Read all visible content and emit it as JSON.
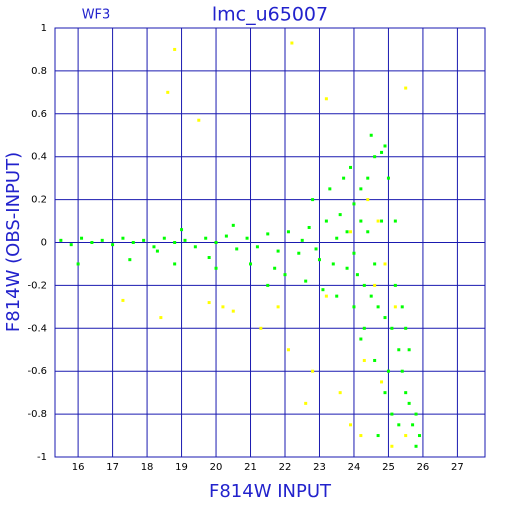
{
  "chart_data": {
    "type": "scatter",
    "title": "lmc_u65007",
    "subtitle": "WF3",
    "x_label": "F814W INPUT",
    "y_label": "F814W (OBS-INPUT)",
    "xlim": [
      15.33,
      27.8
    ],
    "ylim": [
      -1,
      1
    ],
    "xticks": [
      16,
      17,
      18,
      19,
      20,
      21,
      22,
      23,
      24,
      25,
      26,
      27
    ],
    "yticks": [
      -1,
      -0.8,
      -0.6,
      -0.4,
      -0.2,
      0,
      0.2,
      0.4,
      0.6,
      0.8,
      1
    ],
    "grid": true,
    "series": [
      {
        "name": "green",
        "color": "#00ff00",
        "x": [
          15.5,
          15.8,
          16.1,
          16.4,
          16.7,
          17,
          17.3,
          17.6,
          17.9,
          18.2,
          18.5,
          18.8,
          19.1,
          19.4,
          19.7,
          20,
          20.3,
          20.6,
          20.9,
          21.2,
          21.5,
          21.8,
          22.1,
          22.4,
          22.7,
          23,
          23.2,
          23.4,
          23.6,
          23.8,
          24,
          24.1,
          24.2,
          24.3,
          24.4,
          24.5,
          24.6,
          24.7,
          24.8,
          24.9,
          25,
          25.1,
          25.2,
          25.3,
          25.4,
          25.5,
          25.6,
          25.7,
          25.8,
          25.9,
          25.6,
          25.4,
          25.2,
          24.8,
          24.6,
          24.4,
          24.2,
          24,
          23.8,
          23.5,
          22.9,
          22.5,
          16,
          17.5,
          18.3,
          19,
          19.8,
          20.5,
          21,
          21.7,
          22,
          22.6,
          23.1,
          23.5,
          24,
          24.3,
          24.6,
          24.9,
          25.1,
          25.3,
          24.7,
          22.8,
          23.3,
          23.9,
          24.5,
          24.9,
          20,
          18.8,
          21.5,
          23.7,
          24.2,
          25,
          25.5,
          25.8
        ],
        "values": [
          0.01,
          -0.01,
          0.02,
          0,
          0.01,
          -0.01,
          0.02,
          0,
          0.01,
          -0.02,
          0.02,
          0,
          0.01,
          -0.02,
          0.02,
          0,
          0.03,
          -0.03,
          0.02,
          -0.02,
          0.04,
          -0.04,
          0.05,
          -0.05,
          0.07,
          -0.08,
          0.1,
          -0.1,
          0.13,
          -0.12,
          0.18,
          -0.15,
          0.25,
          -0.2,
          0.3,
          -0.25,
          0.4,
          -0.3,
          0.42,
          -0.35,
          0.3,
          -0.4,
          0.1,
          -0.5,
          -0.6,
          -0.7,
          -0.75,
          -0.85,
          -0.95,
          -0.9,
          -0.5,
          -0.3,
          -0.2,
          0.1,
          -0.1,
          0.05,
          0.1,
          -0.05,
          0.05,
          0.02,
          -0.03,
          0.01,
          -0.1,
          -0.08,
          -0.04,
          0.06,
          -0.07,
          0.08,
          -0.1,
          -0.12,
          -0.15,
          -0.18,
          -0.22,
          -0.25,
          -0.3,
          -0.4,
          -0.55,
          -0.7,
          -0.8,
          -0.85,
          -0.9,
          0.2,
          0.25,
          0.35,
          0.5,
          0.45,
          -0.12,
          -0.1,
          -0.2,
          0.3,
          -0.45,
          -0.6,
          -0.4,
          -0.8
        ]
      },
      {
        "name": "yellow",
        "color": "#ffff00",
        "x": [
          18.8,
          18.6,
          22.2,
          23.2,
          25.5,
          19.5,
          17.3,
          18.4,
          19.8,
          20.5,
          21.3,
          22.1,
          22.8,
          23.2,
          23.6,
          23.9,
          24.3,
          24.8,
          25.1,
          24.4,
          24.7,
          24.9,
          25.2,
          25.5,
          22.6,
          24.2,
          23.9,
          24.6,
          20.2,
          21.8
        ],
        "values": [
          0.9,
          0.7,
          0.93,
          0.67,
          0.72,
          0.57,
          -0.27,
          -0.35,
          -0.28,
          -0.32,
          -0.4,
          -0.5,
          -0.6,
          -0.25,
          -0.7,
          -0.85,
          -0.55,
          -0.65,
          -0.95,
          0.2,
          0.1,
          -0.1,
          -0.3,
          -0.9,
          -0.75,
          -0.9,
          0.05,
          -0.2,
          -0.3,
          -0.3
        ]
      }
    ]
  }
}
